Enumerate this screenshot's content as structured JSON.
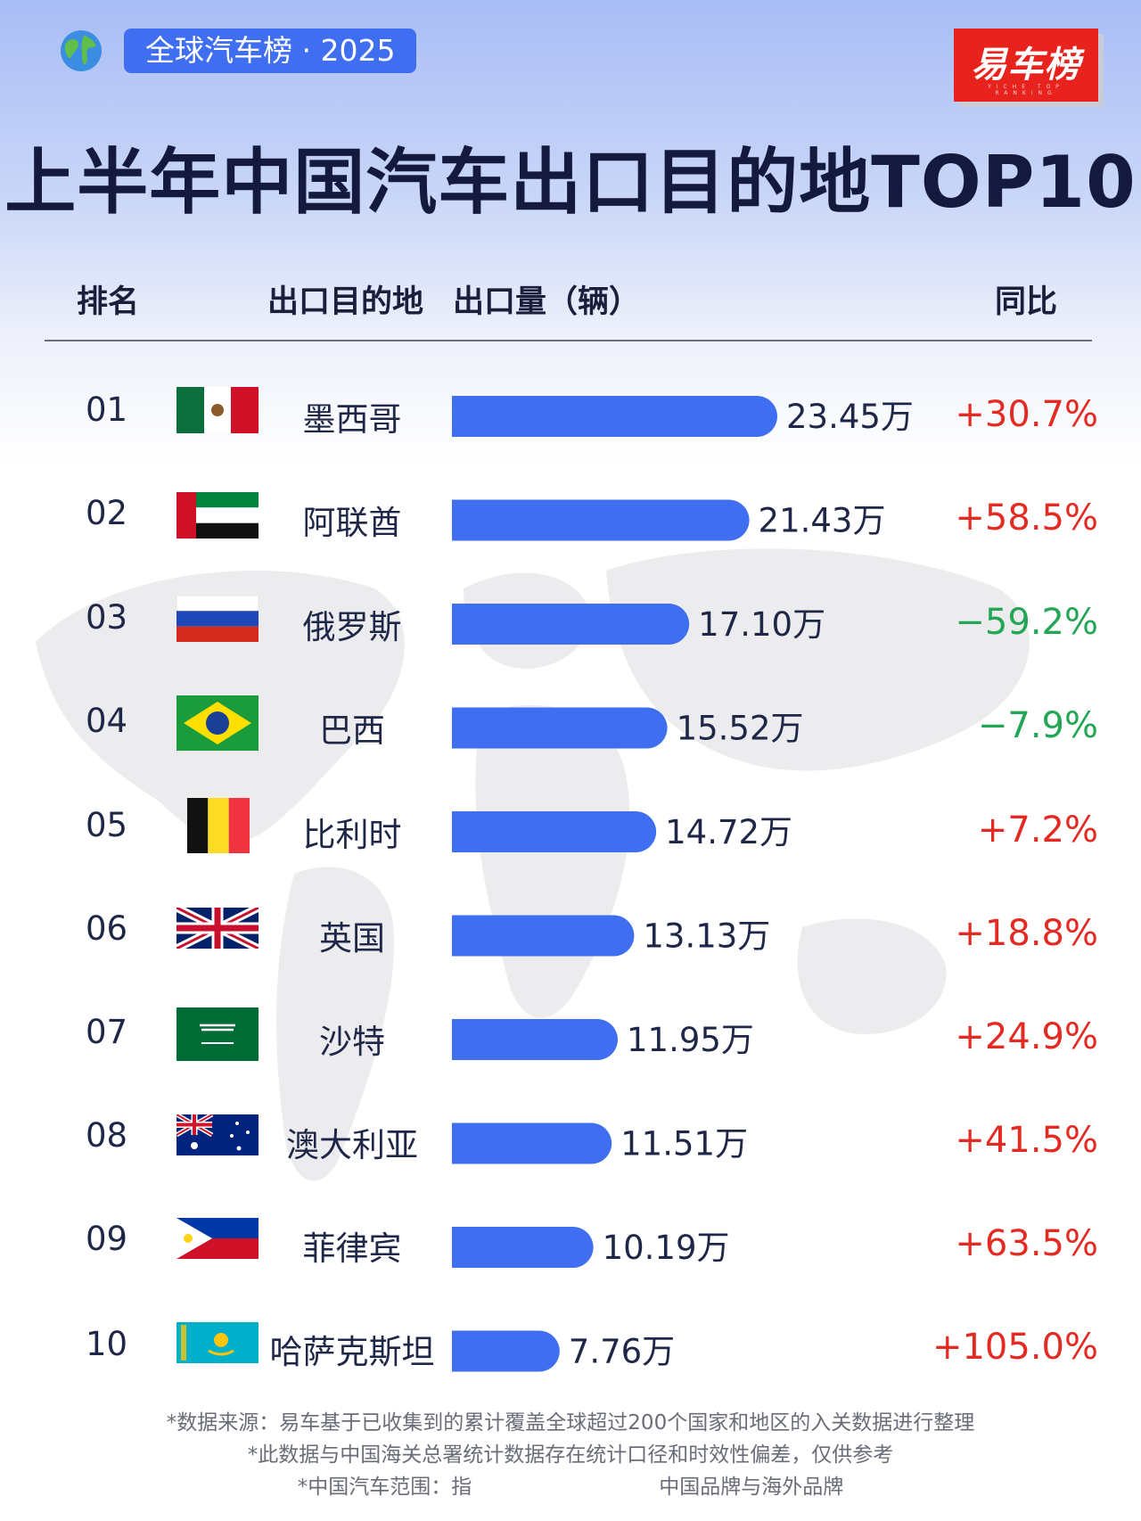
{
  "header": {
    "tag": "全球汽车榜 · 2025",
    "logo": "易车榜",
    "logo_sub": "YICHE TOP RANKING",
    "title": "上半年中国汽车出口目的地TOP10"
  },
  "columns": {
    "rank": "排名",
    "country": "出口目的地",
    "volume": "出口量（辆）",
    "yoy": "同比"
  },
  "chart_data": {
    "type": "bar",
    "orientation": "horizontal",
    "unit": "万",
    "categories": [
      "墨西哥",
      "阿联酋",
      "俄罗斯",
      "巴西",
      "比利时",
      "英国",
      "沙特",
      "澳大利亚",
      "菲律宾",
      "哈萨克斯坦"
    ],
    "values": [
      23.45,
      21.43,
      17.1,
      15.52,
      14.72,
      13.13,
      11.95,
      11.51,
      10.19,
      7.76
    ],
    "value_labels": [
      "23.45万",
      "21.43万",
      "17.10万",
      "15.52万",
      "14.72万",
      "13.13万",
      "11.95万",
      "11.51万",
      "10.19万",
      "7.76万"
    ],
    "bar_color": "#3f6ff0",
    "rows": [
      {
        "rank": "01",
        "country": "墨西哥",
        "flag": "mexico-flag-icon",
        "value_label": "23.45万",
        "yoy": "+30.7%",
        "trend": "up"
      },
      {
        "rank": "02",
        "country": "阿联酋",
        "flag": "uae-flag-icon",
        "value_label": "21.43万",
        "yoy": "+58.5%",
        "trend": "up"
      },
      {
        "rank": "03",
        "country": "俄罗斯",
        "flag": "russia-flag-icon",
        "value_label": "17.10万",
        "yoy": "−59.2%",
        "trend": "down"
      },
      {
        "rank": "04",
        "country": "巴西",
        "flag": "brazil-flag-icon",
        "value_label": "15.52万",
        "yoy": "−7.9%",
        "trend": "down"
      },
      {
        "rank": "05",
        "country": "比利时",
        "flag": "belgium-flag-icon",
        "value_label": "14.72万",
        "yoy": "+7.2%",
        "trend": "up"
      },
      {
        "rank": "06",
        "country": "英国",
        "flag": "uk-flag-icon",
        "value_label": "13.13万",
        "yoy": "+18.8%",
        "trend": "up"
      },
      {
        "rank": "07",
        "country": "沙特",
        "flag": "saudi-flag-icon",
        "value_label": "11.95万",
        "yoy": "+24.9%",
        "trend": "up"
      },
      {
        "rank": "08",
        "country": "澳大利亚",
        "flag": "australia-flag-icon",
        "value_label": "11.51万",
        "yoy": "+41.5%",
        "trend": "up"
      },
      {
        "rank": "09",
        "country": "菲律宾",
        "flag": "philippines-flag-icon",
        "value_label": "10.19万",
        "yoy": "+63.5%",
        "trend": "up"
      },
      {
        "rank": "10",
        "country": "哈萨克斯坦",
        "flag": "kazakhstan-flag-icon",
        "value_label": "7.76万",
        "yoy": "+105.0%",
        "trend": "up"
      }
    ]
  },
  "colors": {
    "positive": "#e32b24",
    "negative": "#23a655",
    "accent": "#3f6ff0"
  },
  "notes": [
    "*数据来源：易车基于已收集到的累计覆盖全球超过200个国家和地区的入关数据进行整理",
    "*此数据与中国海关总署统计数据存在统计口径和时效性偏差，仅供参考",
    "*中国汽车范围：指",
    "中国品牌与海外品牌"
  ]
}
